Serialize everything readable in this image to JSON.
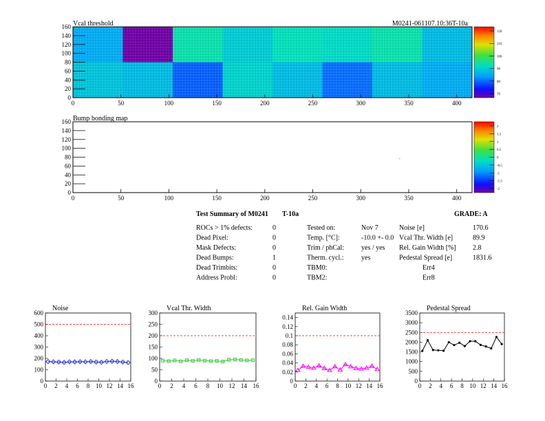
{
  "panels": {
    "vcal": {
      "title": "Vcal threshold",
      "module_label": "M0241-061107.10:36T-10a",
      "x_ticks": [
        "0",
        "50",
        "100",
        "150",
        "200",
        "250",
        "300",
        "350",
        "400"
      ],
      "y_ticks": [
        "0",
        "20",
        "40",
        "60",
        "80",
        "100",
        "120",
        "140",
        "160"
      ],
      "palette_labels": [
        "120",
        "110",
        "100",
        "90",
        "80",
        "70"
      ]
    },
    "bump": {
      "title": "Bump bonding map",
      "x_ticks": [
        "0",
        "50",
        "100",
        "150",
        "200",
        "250",
        "300",
        "350",
        "400"
      ],
      "y_ticks": [
        "0",
        "20",
        "40",
        "60",
        "80",
        "100",
        "120",
        "140",
        "160"
      ],
      "palette_labels": [
        "2",
        "1.5",
        "1",
        "0.5",
        "0",
        "-0.5",
        "-1",
        "-1.5",
        "-2"
      ]
    }
  },
  "summary": {
    "title": "Test Summary of M0241",
    "temp_code": "T-10a",
    "grade": "GRADE:  A",
    "defects": [
      {
        "label": "ROCs > 1% defects:",
        "value": "0"
      },
      {
        "label": "Dead Pixel:",
        "value": "0"
      },
      {
        "label": "Mask Defects:",
        "value": "0"
      },
      {
        "label": "Dead Bumps:",
        "value": "1"
      },
      {
        "label": "Dead Trimbits:",
        "value": "0"
      },
      {
        "label": "Address Probl:",
        "value": "0"
      }
    ],
    "conditions": [
      {
        "label": "Tested on:",
        "value": "Nov 7"
      },
      {
        "label": "Temp. [°C]:",
        "value": "-10.0 +- 0.0"
      },
      {
        "label": "Trim / phCal:",
        "value": "yes / yes"
      },
      {
        "label": "Therm. cycl.:",
        "value": "yes"
      },
      {
        "label": "TBM0:",
        "value": ""
      },
      {
        "label": "TBM2:",
        "value": ""
      }
    ],
    "results": [
      {
        "label": "Noise [e]",
        "value": "170.6"
      },
      {
        "label": "Vcal Thr. Width [e]",
        "value": "89.9"
      },
      {
        "label": "Rel. Gain Width [%]",
        "value": "2.8"
      },
      {
        "label": "Pedestal Spread [e]",
        "value": "1831.6"
      },
      {
        "label": "",
        "value": "Err4"
      },
      {
        "label": "",
        "value": "Err8"
      }
    ]
  },
  "colors": {
    "noise": "#2a33d6",
    "vcal_width": "#33cc33",
    "gain": "#ff00ff",
    "pedestal": "#000000",
    "limit": "#ff0000"
  },
  "chart_data": [
    {
      "type": "heatmap",
      "title": "Vcal threshold",
      "xlim": [
        0,
        416
      ],
      "ylim": [
        0,
        160
      ],
      "rocs_top": [
        88,
        65,
        96,
        92,
        95,
        94,
        96,
        90
      ],
      "rocs_bottom": [
        91,
        90,
        82,
        93,
        90,
        83,
        90,
        88
      ],
      "zlim": [
        70,
        125
      ]
    },
    {
      "type": "heatmap",
      "title": "Bump bonding map",
      "xlim": [
        0,
        416
      ],
      "ylim": [
        0,
        160
      ],
      "defects": [
        {
          "x": 340,
          "y": 78
        }
      ]
    },
    {
      "type": "line",
      "title": "Noise",
      "x": [
        0,
        1,
        2,
        3,
        4,
        5,
        6,
        7,
        8,
        9,
        10,
        11,
        12,
        13,
        14,
        15
      ],
      "values": [
        172,
        170,
        168,
        165,
        170,
        169,
        171,
        170,
        172,
        168,
        166,
        173,
        175,
        172,
        168,
        163
      ],
      "limit": 500,
      "xlim": [
        0,
        16
      ],
      "ylim": [
        0,
        600
      ],
      "x_ticks": [
        "0",
        "2",
        "4",
        "6",
        "8",
        "10",
        "12",
        "14",
        "16"
      ],
      "y_ticks": [
        "0",
        "100",
        "200",
        "300",
        "400",
        "500",
        "600"
      ]
    },
    {
      "type": "line",
      "title": "Vcal Thr. Width",
      "x": [
        0,
        1,
        2,
        3,
        4,
        5,
        6,
        7,
        8,
        9,
        10,
        11,
        12,
        13,
        14,
        15
      ],
      "values": [
        90,
        88,
        91,
        87,
        92,
        89,
        93,
        90,
        88,
        89,
        86,
        94,
        95,
        93,
        91,
        92
      ],
      "limit": 200,
      "xlim": [
        0,
        16
      ],
      "ylim": [
        0,
        300
      ],
      "x_ticks": [
        "0",
        "2",
        "4",
        "6",
        "8",
        "10",
        "12",
        "14",
        "16"
      ],
      "y_ticks": [
        "0",
        "50",
        "100",
        "150",
        "200",
        "250",
        "300"
      ]
    },
    {
      "type": "line",
      "title": "Rel. Gain Width",
      "x": [
        0,
        1,
        2,
        3,
        4,
        5,
        6,
        7,
        8,
        9,
        10,
        11,
        12,
        13,
        14,
        15
      ],
      "values": [
        0.024,
        0.033,
        0.031,
        0.029,
        0.034,
        0.028,
        0.024,
        0.032,
        0.025,
        0.037,
        0.032,
        0.028,
        0.027,
        0.029,
        0.033,
        0.026
      ],
      "limit": 0.1,
      "xlim": [
        0,
        16
      ],
      "ylim": [
        0,
        0.15
      ],
      "x_ticks": [
        "0",
        "2",
        "4",
        "6",
        "8",
        "10",
        "12",
        "14",
        "16"
      ],
      "y_ticks": [
        "0",
        "0.02",
        "0.04",
        "0.06",
        "0.08",
        "0.1",
        "0.12",
        "0.14"
      ]
    },
    {
      "type": "line",
      "title": "Pedestal Spread",
      "x": [
        0,
        1,
        2,
        3,
        4,
        5,
        6,
        7,
        8,
        9,
        10,
        11,
        12,
        13,
        14,
        15
      ],
      "values": [
        1560,
        2100,
        1600,
        1580,
        1560,
        2000,
        1850,
        1970,
        1800,
        2050,
        2050,
        1860,
        1780,
        1680,
        2270,
        1900
      ],
      "limit": 2500,
      "xlim": [
        0,
        16
      ],
      "ylim": [
        0,
        3500
      ],
      "x_ticks": [
        "0",
        "2",
        "4",
        "6",
        "8",
        "10",
        "12",
        "14",
        "16"
      ],
      "y_ticks": [
        "0",
        "500",
        "1000",
        "1500",
        "2000",
        "2500",
        "3000",
        "3500"
      ]
    }
  ]
}
